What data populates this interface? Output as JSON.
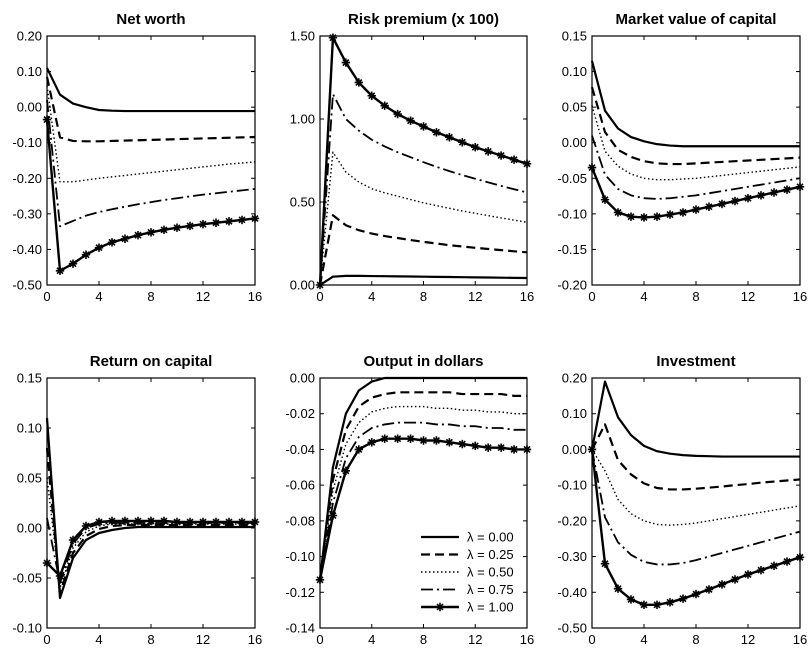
{
  "series_styles": {
    "0": {
      "dash": "",
      "width": 2.2,
      "marker": false
    },
    "1": {
      "dash": "9,5",
      "width": 2.2,
      "marker": false
    },
    "2": {
      "dash": "1.5,2.5",
      "width": 1.4,
      "marker": false
    },
    "3": {
      "dash": "12,4,2,4",
      "width": 1.8,
      "marker": false
    },
    "4": {
      "dash": "",
      "width": 2.4,
      "marker": true
    }
  },
  "chart_data": [
    {
      "type": "line",
      "title": "Net worth",
      "x": [
        0,
        1,
        2,
        3,
        4,
        5,
        6,
        7,
        8,
        9,
        10,
        11,
        12,
        13,
        14,
        15,
        16
      ],
      "xticks": [
        0,
        4,
        8,
        12,
        16
      ],
      "xtick_labels": [
        "0",
        "4",
        "8",
        "12",
        "16"
      ],
      "ylim": [
        -0.5,
        0.2
      ],
      "yticks": [
        -0.5,
        -0.4,
        -0.3,
        -0.2,
        -0.1,
        0,
        0.1,
        0.2
      ],
      "ytick_labels": [
        "-0.50",
        "-0.40",
        "-0.30",
        "-0.20",
        "-0.10",
        "0.00",
        "0.10",
        "0.20"
      ],
      "series": [
        {
          "name": "λ = 0.00",
          "values": [
            0.11,
            0.035,
            0.01,
            0.0,
            -0.008,
            -0.01,
            -0.011,
            -0.011,
            -0.011,
            -0.011,
            -0.011,
            -0.011,
            -0.011,
            -0.011,
            -0.011,
            -0.011,
            -0.011
          ]
        },
        {
          "name": "λ = 0.25",
          "values": [
            0.085,
            -0.085,
            -0.095,
            -0.096,
            -0.096,
            -0.095,
            -0.094,
            -0.093,
            -0.092,
            -0.091,
            -0.09,
            -0.089,
            -0.088,
            -0.087,
            -0.086,
            -0.085,
            -0.084
          ]
        },
        {
          "name": "λ = 0.50",
          "values": [
            0.06,
            -0.21,
            -0.21,
            -0.205,
            -0.2,
            -0.196,
            -0.192,
            -0.188,
            -0.184,
            -0.18,
            -0.176,
            -0.172,
            -0.168,
            -0.164,
            -0.16,
            -0.157,
            -0.154
          ]
        },
        {
          "name": "λ = 0.75",
          "values": [
            0.02,
            -0.335,
            -0.32,
            -0.305,
            -0.295,
            -0.287,
            -0.28,
            -0.273,
            -0.267,
            -0.261,
            -0.256,
            -0.251,
            -0.246,
            -0.242,
            -0.238,
            -0.234,
            -0.23
          ]
        },
        {
          "name": "λ = 1.00",
          "values": [
            -0.035,
            -0.46,
            -0.44,
            -0.415,
            -0.395,
            -0.38,
            -0.37,
            -0.36,
            -0.352,
            -0.345,
            -0.339,
            -0.334,
            -0.329,
            -0.325,
            -0.321,
            -0.317,
            -0.313
          ]
        }
      ]
    },
    {
      "type": "line",
      "title": "Risk premium (x 100)",
      "x": [
        0,
        1,
        2,
        3,
        4,
        5,
        6,
        7,
        8,
        9,
        10,
        11,
        12,
        13,
        14,
        15,
        16
      ],
      "xticks": [
        0,
        4,
        8,
        12,
        16
      ],
      "xtick_labels": [
        "0",
        "4",
        "8",
        "12",
        "16"
      ],
      "ylim": [
        0,
        1.5
      ],
      "yticks": [
        0,
        0.5,
        1.0,
        1.5
      ],
      "ytick_labels": [
        "0.00",
        "0.50",
        "1.00",
        "1.50"
      ],
      "series": [
        {
          "name": "λ = 0.00",
          "values": [
            0.0,
            0.05,
            0.055,
            0.055,
            0.054,
            0.053,
            0.052,
            0.051,
            0.05,
            0.049,
            0.048,
            0.047,
            0.046,
            0.045,
            0.044,
            0.043,
            0.042
          ]
        },
        {
          "name": "λ = 0.25",
          "values": [
            0.0,
            0.42,
            0.36,
            0.33,
            0.31,
            0.295,
            0.283,
            0.271,
            0.26,
            0.25,
            0.24,
            0.232,
            0.224,
            0.217,
            0.21,
            0.203,
            0.197
          ]
        },
        {
          "name": "λ = 0.50",
          "values": [
            0.0,
            0.8,
            0.68,
            0.62,
            0.58,
            0.555,
            0.535,
            0.515,
            0.495,
            0.478,
            0.462,
            0.446,
            0.432,
            0.418,
            0.404,
            0.391,
            0.378
          ]
        },
        {
          "name": "λ = 0.75",
          "values": [
            0.0,
            1.15,
            1.0,
            0.93,
            0.875,
            0.835,
            0.8,
            0.77,
            0.74,
            0.712,
            0.686,
            0.662,
            0.64,
            0.618,
            0.597,
            0.577,
            0.557
          ]
        },
        {
          "name": "λ = 1.00",
          "values": [
            0.0,
            1.49,
            1.34,
            1.22,
            1.14,
            1.08,
            1.03,
            0.99,
            0.955,
            0.92,
            0.89,
            0.86,
            0.83,
            0.805,
            0.78,
            0.755,
            0.73
          ]
        }
      ]
    },
    {
      "type": "line",
      "title": "Market value of capital",
      "x": [
        0,
        1,
        2,
        3,
        4,
        5,
        6,
        7,
        8,
        9,
        10,
        11,
        12,
        13,
        14,
        15,
        16
      ],
      "xticks": [
        0,
        4,
        8,
        12,
        16
      ],
      "xtick_labels": [
        "0",
        "4",
        "8",
        "12",
        "16"
      ],
      "ylim": [
        -0.2,
        0.15
      ],
      "yticks": [
        -0.2,
        -0.15,
        -0.1,
        -0.05,
        0,
        0.05,
        0.1,
        0.15
      ],
      "ytick_labels": [
        "-0.20",
        "-0.15",
        "-0.10",
        "-0.05",
        "0.00",
        "0.05",
        "0.10",
        "0.15"
      ],
      "series": [
        {
          "name": "λ = 0.00",
          "values": [
            0.115,
            0.045,
            0.02,
            0.008,
            0.002,
            -0.002,
            -0.004,
            -0.005,
            -0.005,
            -0.005,
            -0.005,
            -0.005,
            -0.005,
            -0.005,
            -0.005,
            -0.005,
            -0.005
          ]
        },
        {
          "name": "λ = 0.25",
          "values": [
            0.078,
            0.015,
            -0.01,
            -0.02,
            -0.026,
            -0.029,
            -0.03,
            -0.03,
            -0.029,
            -0.028,
            -0.027,
            -0.026,
            -0.025,
            -0.024,
            -0.023,
            -0.022,
            -0.021
          ]
        },
        {
          "name": "λ = 0.50",
          "values": [
            0.052,
            -0.012,
            -0.033,
            -0.044,
            -0.05,
            -0.052,
            -0.052,
            -0.051,
            -0.05,
            -0.048,
            -0.046,
            -0.044,
            -0.042,
            -0.04,
            -0.038,
            -0.036,
            -0.034
          ]
        },
        {
          "name": "λ = 0.75",
          "values": [
            0.01,
            -0.045,
            -0.065,
            -0.074,
            -0.078,
            -0.079,
            -0.078,
            -0.076,
            -0.074,
            -0.071,
            -0.068,
            -0.065,
            -0.062,
            -0.059,
            -0.056,
            -0.053,
            -0.05
          ]
        },
        {
          "name": "λ = 1.00",
          "values": [
            -0.035,
            -0.08,
            -0.098,
            -0.104,
            -0.105,
            -0.104,
            -0.101,
            -0.098,
            -0.094,
            -0.09,
            -0.086,
            -0.082,
            -0.078,
            -0.074,
            -0.07,
            -0.066,
            -0.062
          ]
        }
      ]
    },
    {
      "type": "line",
      "title": "Return on capital",
      "x": [
        0,
        1,
        2,
        3,
        4,
        5,
        6,
        7,
        8,
        9,
        10,
        11,
        12,
        13,
        14,
        15,
        16
      ],
      "xticks": [
        0,
        4,
        8,
        12,
        16
      ],
      "xtick_labels": [
        "0",
        "4",
        "8",
        "12",
        "16"
      ],
      "ylim": [
        -0.1,
        0.15
      ],
      "yticks": [
        -0.1,
        -0.05,
        0,
        0.05,
        0.1,
        0.15
      ],
      "ytick_labels": [
        "-0.10",
        "-0.05",
        "0.00",
        "0.05",
        "0.10",
        "0.15"
      ],
      "series": [
        {
          "name": "λ = 0.00",
          "values": [
            0.11,
            -0.07,
            -0.03,
            -0.012,
            -0.005,
            -0.002,
            0.0,
            0.001,
            0.001,
            0.001,
            0.001,
            0.001,
            0.001,
            0.001,
            0.001,
            0.001,
            0.001
          ]
        },
        {
          "name": "λ = 0.25",
          "values": [
            0.08,
            -0.065,
            -0.025,
            -0.008,
            -0.001,
            0.002,
            0.003,
            0.003,
            0.003,
            0.003,
            0.003,
            0.003,
            0.003,
            0.003,
            0.003,
            0.003,
            0.003
          ]
        },
        {
          "name": "λ = 0.50",
          "values": [
            0.05,
            -0.06,
            -0.02,
            -0.004,
            0.002,
            0.004,
            0.004,
            0.004,
            0.004,
            0.004,
            0.004,
            0.004,
            0.004,
            0.004,
            0.004,
            0.004,
            0.004
          ]
        },
        {
          "name": "λ = 0.75",
          "values": [
            0.01,
            -0.055,
            -0.016,
            0.0,
            0.004,
            0.005,
            0.005,
            0.005,
            0.005,
            0.005,
            0.005,
            0.005,
            0.005,
            0.005,
            0.005,
            0.005,
            0.005
          ]
        },
        {
          "name": "λ = 1.00",
          "values": [
            -0.035,
            -0.048,
            -0.012,
            0.002,
            0.006,
            0.007,
            0.007,
            0.007,
            0.007,
            0.007,
            0.006,
            0.006,
            0.006,
            0.006,
            0.006,
            0.006,
            0.006
          ]
        }
      ]
    },
    {
      "type": "line",
      "title": "Output in dollars",
      "x": [
        0,
        1,
        2,
        3,
        4,
        5,
        6,
        7,
        8,
        9,
        10,
        11,
        12,
        13,
        14,
        15,
        16
      ],
      "xticks": [
        0,
        4,
        8,
        12,
        16
      ],
      "xtick_labels": [
        "0",
        "4",
        "8",
        "12",
        "16"
      ],
      "ylim": [
        -0.14,
        0.0
      ],
      "yticks": [
        -0.14,
        -0.12,
        -0.1,
        -0.08,
        -0.06,
        -0.04,
        -0.02,
        0
      ],
      "ytick_labels": [
        "-0.14",
        "-0.12",
        "-0.10",
        "-0.08",
        "-0.06",
        "-0.04",
        "-0.02",
        "0.00"
      ],
      "series": [
        {
          "name": "λ = 0.00",
          "values": [
            -0.113,
            -0.05,
            -0.02,
            -0.007,
            -0.002,
            0.0,
            0.0,
            0.0,
            0.0,
            0.0,
            0.0,
            0.0,
            0.0,
            0.0,
            0.0,
            0.0,
            0.0
          ]
        },
        {
          "name": "λ = 0.25",
          "values": [
            -0.113,
            -0.057,
            -0.029,
            -0.016,
            -0.011,
            -0.009,
            -0.008,
            -0.008,
            -0.008,
            -0.008,
            -0.008,
            -0.009,
            -0.009,
            -0.009,
            -0.009,
            -0.01,
            -0.01
          ]
        },
        {
          "name": "λ = 0.50",
          "values": [
            -0.113,
            -0.063,
            -0.037,
            -0.025,
            -0.019,
            -0.017,
            -0.016,
            -0.016,
            -0.016,
            -0.017,
            -0.017,
            -0.018,
            -0.018,
            -0.019,
            -0.019,
            -0.02,
            -0.02
          ]
        },
        {
          "name": "λ = 0.75",
          "values": [
            -0.113,
            -0.07,
            -0.045,
            -0.033,
            -0.028,
            -0.026,
            -0.025,
            -0.025,
            -0.025,
            -0.026,
            -0.026,
            -0.027,
            -0.027,
            -0.028,
            -0.028,
            -0.029,
            -0.029
          ]
        },
        {
          "name": "λ = 1.00",
          "values": [
            -0.113,
            -0.077,
            -0.052,
            -0.04,
            -0.036,
            -0.034,
            -0.034,
            -0.034,
            -0.035,
            -0.035,
            -0.036,
            -0.037,
            -0.038,
            -0.039,
            -0.039,
            -0.04,
            -0.04
          ]
        }
      ]
    },
    {
      "type": "line",
      "title": "Investment",
      "x": [
        0,
        1,
        2,
        3,
        4,
        5,
        6,
        7,
        8,
        9,
        10,
        11,
        12,
        13,
        14,
        15,
        16
      ],
      "xticks": [
        0,
        4,
        8,
        12,
        16
      ],
      "xtick_labels": [
        "0",
        "4",
        "8",
        "12",
        "16"
      ],
      "ylim": [
        -0.5,
        0.2
      ],
      "yticks": [
        -0.5,
        -0.4,
        -0.3,
        -0.2,
        -0.1,
        0,
        0.1,
        0.2
      ],
      "ytick_labels": [
        "-0.50",
        "-0.40",
        "-0.30",
        "-0.20",
        "-0.10",
        "0.00",
        "0.10",
        "0.20"
      ],
      "series": [
        {
          "name": "λ = 0.00",
          "values": [
            0.0,
            0.19,
            0.09,
            0.04,
            0.01,
            -0.005,
            -0.012,
            -0.016,
            -0.018,
            -0.019,
            -0.02,
            -0.02,
            -0.02,
            -0.02,
            -0.02,
            -0.02,
            -0.02
          ]
        },
        {
          "name": "λ = 0.25",
          "values": [
            0.0,
            0.07,
            -0.03,
            -0.07,
            -0.095,
            -0.108,
            -0.112,
            -0.112,
            -0.11,
            -0.107,
            -0.104,
            -0.1,
            -0.097,
            -0.093,
            -0.09,
            -0.087,
            -0.084
          ]
        },
        {
          "name": "λ = 0.50",
          "values": [
            0.0,
            -0.06,
            -0.14,
            -0.18,
            -0.2,
            -0.21,
            -0.212,
            -0.21,
            -0.206,
            -0.2,
            -0.194,
            -0.188,
            -0.182,
            -0.176,
            -0.17,
            -0.164,
            -0.158
          ]
        },
        {
          "name": "λ = 0.75",
          "values": [
            0.0,
            -0.19,
            -0.26,
            -0.295,
            -0.315,
            -0.322,
            -0.322,
            -0.318,
            -0.31,
            -0.3,
            -0.29,
            -0.28,
            -0.27,
            -0.26,
            -0.25,
            -0.24,
            -0.23
          ]
        },
        {
          "name": "λ = 1.00",
          "values": [
            0.0,
            -0.32,
            -0.39,
            -0.42,
            -0.435,
            -0.435,
            -0.428,
            -0.418,
            -0.405,
            -0.392,
            -0.378,
            -0.364,
            -0.35,
            -0.338,
            -0.326,
            -0.314,
            -0.302
          ]
        }
      ]
    }
  ],
  "legend": {
    "entries": [
      "λ = 0.00",
      "λ = 0.25",
      "λ = 0.50",
      "λ = 0.75",
      "λ = 1.00"
    ],
    "placement": "inside bottom-right of Output in dollars panel"
  }
}
